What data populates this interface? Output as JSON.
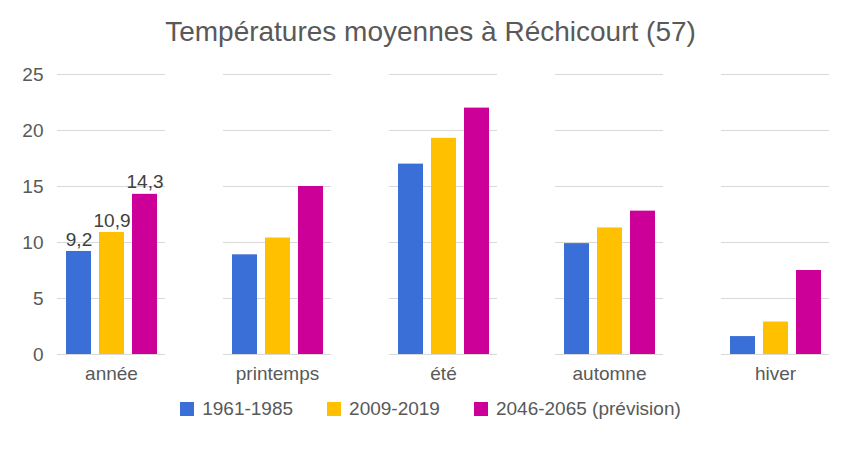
{
  "chart_data": {
    "type": "bar",
    "title": "Températures moyennes à Réchicourt (57)",
    "categories": [
      "année",
      "printemps",
      "été",
      "automne",
      "hiver"
    ],
    "series": [
      {
        "name": "1961-1985",
        "color": "#3a6fd8",
        "values": [
          9.2,
          8.9,
          17.0,
          9.9,
          1.6
        ]
      },
      {
        "name": "2009-2019",
        "color": "#ffc000",
        "values": [
          10.9,
          10.4,
          19.3,
          11.3,
          2.9
        ]
      },
      {
        "name": "2046-2065 (prévision)",
        "color": "#cc0099",
        "values": [
          14.3,
          15.0,
          22.0,
          12.8,
          7.5
        ]
      }
    ],
    "annotations": [
      {
        "category": "année",
        "series": "1961-1985",
        "value": 9.2,
        "label": "9,2"
      },
      {
        "category": "année",
        "series": "2009-2019",
        "value": 10.9,
        "label": "10,9"
      },
      {
        "category": "année",
        "series": "2046-2065 (prévision)",
        "value": 14.3,
        "label": "14,3"
      }
    ],
    "ylim": [
      0,
      25
    ],
    "yticks": [
      0,
      5,
      10,
      15,
      20,
      25
    ],
    "grid": true,
    "legend": "bottom"
  }
}
